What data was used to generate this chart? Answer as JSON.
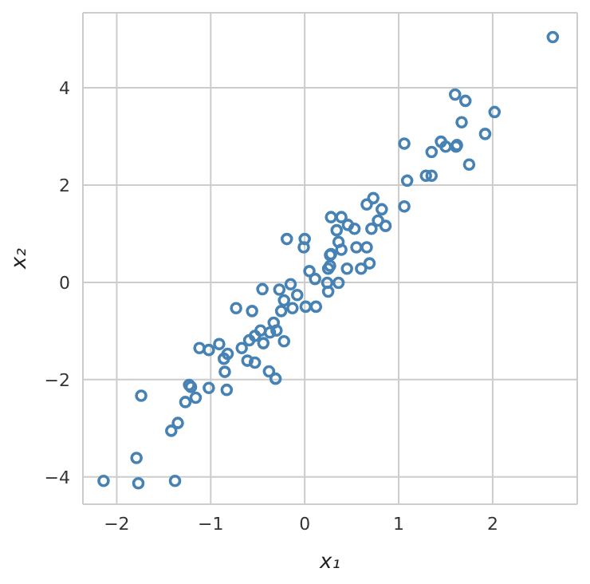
{
  "chart_data": {
    "type": "scatter",
    "xlabel": "x₁",
    "ylabel": "x₂",
    "xlim": [
      -2.36,
      2.9
    ],
    "ylim": [
      -4.56,
      5.54
    ],
    "xticks": [
      -2,
      -1,
      0,
      1,
      2
    ],
    "yticks": [
      -4,
      -2,
      0,
      2,
      4
    ],
    "grid": true,
    "marker": "circle",
    "series": [
      {
        "color": "#4682b4",
        "x": [
          -2.14,
          -1.77,
          -1.38,
          -1.79,
          -1.42,
          -1.35,
          -1.74,
          -1.27,
          -1.16,
          -1.21,
          -1.23,
          -0.83,
          -1.02,
          -0.85,
          -0.86,
          -0.82,
          -1.12,
          -1.02,
          -0.91,
          -0.31,
          -0.38,
          -0.53,
          -0.61,
          -0.67,
          -0.59,
          -0.53,
          -0.44,
          -0.22,
          -0.3,
          -0.37,
          -0.47,
          -0.33,
          -0.25,
          -0.13,
          0.01,
          0.12,
          -0.73,
          -0.56,
          -0.45,
          -0.27,
          -0.15,
          -0.22,
          -0.08,
          0.25,
          0.11,
          0.05,
          0.25,
          0.27,
          0.24,
          0.36,
          -0.19,
          0,
          -0.01,
          0.28,
          0.39,
          0.34,
          0.46,
          0.53,
          0.36,
          0.28,
          0.39,
          0.27,
          0.45,
          0.55,
          0.66,
          0.6,
          0.69,
          0.71,
          0.78,
          0.86,
          0.66,
          0.73,
          0.82,
          1.06,
          1.09,
          1.29,
          1.35,
          1.06,
          1.35,
          1.5,
          1.61,
          1.45,
          1.62,
          1.75,
          1.92,
          1.67,
          2.02,
          1.71,
          1.6,
          2.64
        ],
        "values": [
          -4.08,
          -4.13,
          -4.08,
          -3.61,
          -3.05,
          -2.89,
          -2.33,
          -2.46,
          -2.37,
          -2.15,
          -2.11,
          -2.21,
          -2.17,
          -1.84,
          -1.57,
          -1.47,
          -1.35,
          -1.39,
          -1.27,
          -1.98,
          -1.83,
          -1.65,
          -1.61,
          -1.35,
          -1.19,
          -1.1,
          -1.25,
          -1.21,
          -0.99,
          -1.03,
          -0.99,
          -0.83,
          -0.59,
          -0.53,
          -0.5,
          -0.5,
          -0.53,
          -0.59,
          -0.14,
          -0.15,
          -0.04,
          -0.37,
          -0.26,
          -0.19,
          0.07,
          0.23,
          0.28,
          0.56,
          -0.01,
          -0.01,
          0.89,
          0.89,
          0.72,
          1.34,
          1.34,
          1.07,
          1.18,
          1.1,
          0.83,
          0.58,
          0.67,
          0.34,
          0.28,
          0.72,
          0.72,
          0.28,
          0.39,
          1.1,
          1.27,
          1.16,
          1.6,
          1.73,
          1.5,
          1.56,
          2.09,
          2.19,
          2.19,
          2.85,
          2.68,
          2.79,
          2.79,
          2.89,
          2.82,
          2.42,
          3.05,
          3.29,
          3.5,
          3.73,
          3.86,
          5.04
        ]
      }
    ]
  }
}
